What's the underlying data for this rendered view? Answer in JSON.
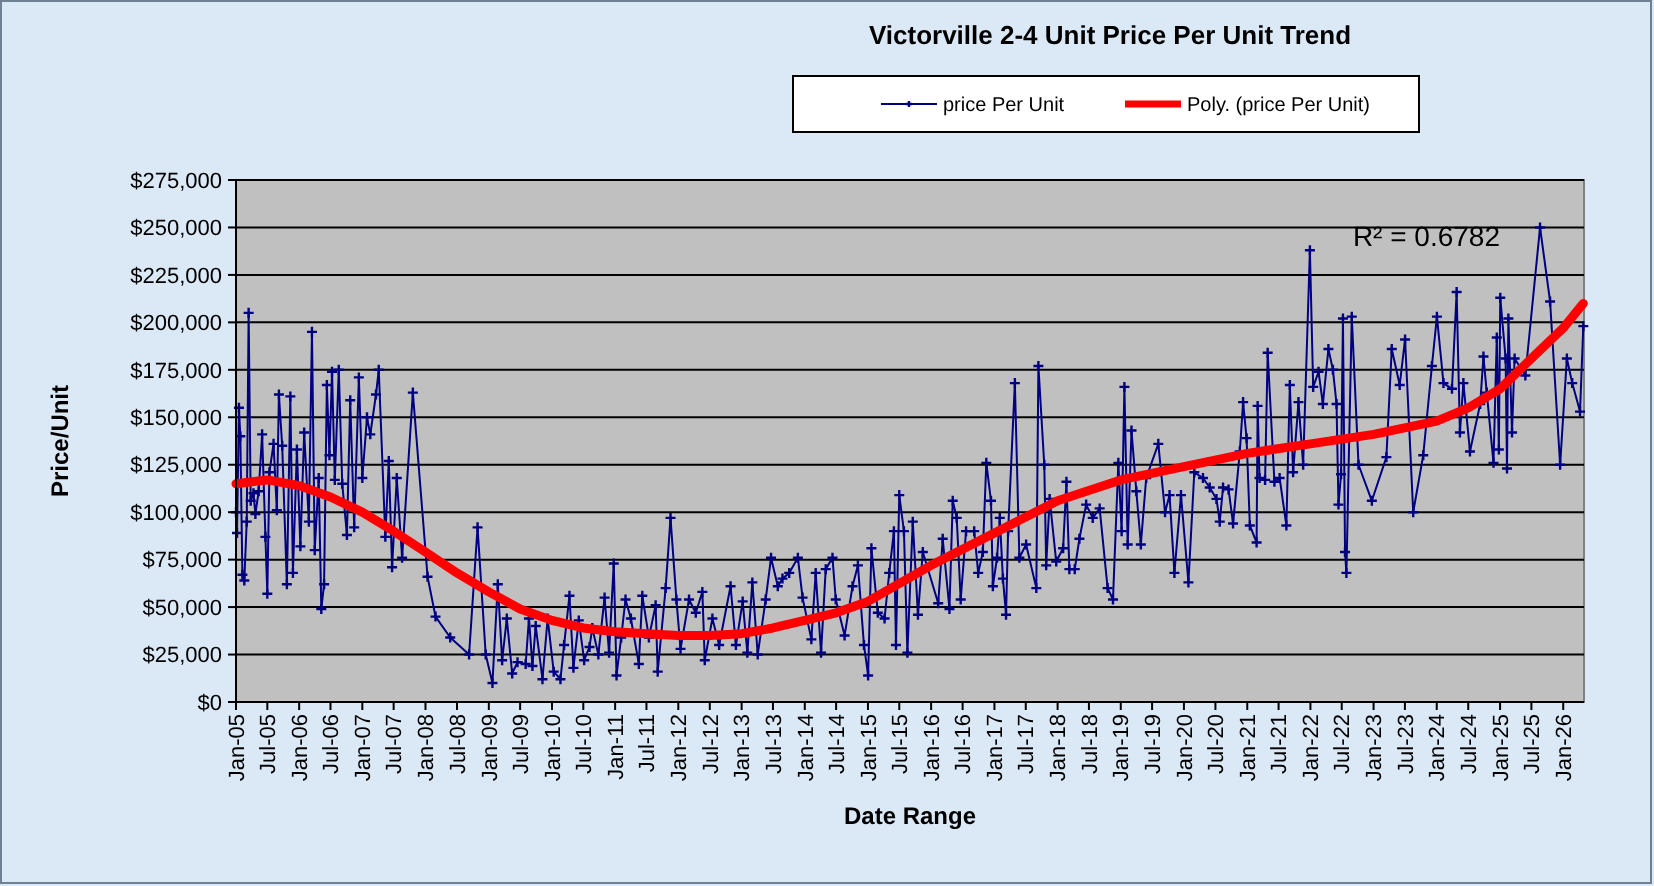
{
  "chart_data": {
    "type": "line",
    "title": "Victorville 2-4 Unit Price Per Unit Trend",
    "xlabel": "Date Range",
    "ylabel": "Price/Unit",
    "annotations": [
      "R² = 0.6782"
    ],
    "series": [
      {
        "name": "price Per Unit",
        "color": "#000080",
        "x": [
          "2005-01-01",
          "2005-01-07",
          "2005-01-18",
          "2005-01-26",
          "2005-02-07",
          "2005-02-18",
          "2005-03-04",
          "2005-03-15",
          "2005-03-27",
          "2005-04-12",
          "2005-04-23",
          "2005-05-12",
          "2005-06-01",
          "2005-06-20",
          "2005-07-01",
          "2005-07-13",
          "2005-08-06",
          "2005-08-25",
          "2005-09-06",
          "2005-09-25",
          "2005-10-22",
          "2005-11-11",
          "2005-11-26",
          "2005-12-19",
          "2006-01-08",
          "2006-01-30",
          "2006-02-26",
          "2006-03-16",
          "2006-04-01",
          "2006-04-24",
          "2006-05-09",
          "2006-05-25",
          "2006-06-10",
          "2006-06-25",
          "2006-07-10",
          "2006-07-26",
          "2006-08-18",
          "2006-09-07",
          "2006-10-04",
          "2006-10-23",
          "2006-11-15",
          "2006-12-12",
          "2007-01-01",
          "2007-01-28",
          "2007-02-16",
          "2007-03-21",
          "2007-04-06",
          "2007-05-14",
          "2007-06-03",
          "2007-06-22",
          "2007-07-19",
          "2007-08-19",
          "2007-10-20",
          "2008-01-13",
          "2008-02-28",
          "2008-05-23",
          "2008-09-09",
          "2008-10-28",
          "2008-12-14",
          "2009-01-22",
          "2009-02-22",
          "2009-03-19",
          "2009-04-15",
          "2009-05-16",
          "2009-06-16",
          "2009-08-02",
          "2009-08-21",
          "2009-09-10",
          "2009-09-29",
          "2009-11-07",
          "2009-12-07",
          "2010-01-11",
          "2010-02-19",
          "2010-03-12",
          "2010-04-12",
          "2010-05-05",
          "2010-06-05",
          "2010-07-06",
          "2010-08-06",
          "2010-08-22",
          "2010-09-26",
          "2010-11-01",
          "2010-11-27",
          "2010-12-24",
          "2011-01-09",
          "2011-02-05",
          "2011-03-02",
          "2011-04-02",
          "2011-05-18",
          "2011-06-07",
          "2011-07-15",
          "2011-08-23",
          "2011-09-04",
          "2011-10-20",
          "2011-11-17",
          "2011-12-21",
          "2012-01-14",
          "2012-03-03",
          "2012-04-11",
          "2012-05-19",
          "2012-06-02",
          "2012-07-16",
          "2012-08-24",
          "2012-10-29",
          "2012-11-29",
          "2013-01-07",
          "2013-02-03",
          "2013-03-04",
          "2013-04-04",
          "2013-05-20",
          "2013-06-20",
          "2013-07-29",
          "2013-08-25",
          "2013-10-03",
          "2013-11-22",
          "2013-12-19",
          "2014-02-08",
          "2014-03-05",
          "2014-04-05",
          "2014-05-02",
          "2014-06-10",
          "2014-06-29",
          "2014-08-19",
          "2014-10-04",
          "2014-11-04",
          "2014-12-09",
          "2015-01-02",
          "2015-01-21",
          "2015-02-27",
          "2015-04-07",
          "2015-05-04",
          "2015-05-31",
          "2015-06-12",
          "2015-07-01",
          "2015-07-28",
          "2015-08-17",
          "2015-09-17",
          "2015-10-17",
          "2015-11-14",
          "2016-02-11",
          "2016-03-08",
          "2016-04-16",
          "2016-05-05",
          "2016-05-28",
          "2016-06-20",
          "2016-07-21",
          "2016-09-06",
          "2016-09-29",
          "2016-10-26",
          "2016-11-15",
          "2016-12-12",
          "2016-12-23",
          "2017-01-16",
          "2017-02-01",
          "2017-02-19",
          "2017-03-09",
          "2017-03-21",
          "2017-04-29",
          "2017-05-25",
          "2017-07-03",
          "2017-08-31",
          "2017-09-12",
          "2017-10-16",
          "2017-10-27",
          "2017-11-16",
          "2017-12-24",
          "2018-02-02",
          "2018-02-21",
          "2018-03-10",
          "2018-04-10",
          "2018-05-07",
          "2018-06-15",
          "2018-07-23",
          "2018-09-01",
          "2018-10-17",
          "2018-11-17",
          "2018-12-18",
          "2019-01-06",
          "2019-01-22",
          "2019-02-10",
          "2019-03-04",
          "2019-04-01",
          "2019-04-27",
          "2019-05-28",
          "2019-08-06",
          "2019-09-14",
          "2019-10-10",
          "2019-11-07",
          "2019-12-15",
          "2020-01-27",
          "2020-03-01",
          "2020-04-20",
          "2020-05-29",
          "2020-07-07",
          "2020-07-26",
          "2020-08-14",
          "2020-09-15",
          "2020-10-11",
          "2020-11-19",
          "2020-12-08",
          "2020-12-28",
          "2021-01-16",
          "2021-02-24",
          "2021-03-02",
          "2021-03-13",
          "2021-04-14",
          "2021-04-29",
          "2021-06-07",
          "2021-07-07",
          "2021-08-15",
          "2021-09-04",
          "2021-09-23",
          "2021-10-24",
          "2021-11-20",
          "2021-12-29",
          "2022-01-17",
          "2022-02-17",
          "2022-03-14",
          "2022-04-15",
          "2022-05-11",
          "2022-06-01",
          "2022-06-12",
          "2022-06-27",
          "2022-07-08",
          "2022-07-20",
          "2022-07-28",
          "2022-08-28",
          "2022-10-06",
          "2022-12-22",
          "2023-03-16",
          "2023-04-16",
          "2023-06-01",
          "2023-07-02",
          "2023-08-18",
          "2023-10-15",
          "2023-12-04",
          "2024-01-02",
          "2024-02-09",
          "2024-03-29",
          "2024-04-25",
          "2024-05-14",
          "2024-06-03",
          "2024-07-11",
          "2024-09-08",
          "2024-09-27",
          "2024-10-16",
          "2024-11-24",
          "2024-12-13",
          "2024-12-25",
          "2025-01-02",
          "2025-02-02",
          "2025-02-10",
          "2025-02-18",
          "2025-03-11",
          "2025-03-26",
          "2025-05-27",
          "2025-08-20",
          "2025-10-17",
          "2025-12-14",
          "2026-01-22",
          "2026-02-22",
          "2026-04-08",
          "2026-04-27"
        ],
        "values": [
          100000,
          89000,
          155000,
          140000,
          67000,
          64000,
          95000,
          205000,
          106000,
          110000,
          99000,
          111000,
          141000,
          87000,
          57000,
          121000,
          136000,
          101000,
          162000,
          135000,
          62000,
          161000,
          68000,
          133000,
          82000,
          142000,
          95000,
          195000,
          80000,
          118000,
          49000,
          62000,
          167000,
          130000,
          174000,
          117000,
          175000,
          115000,
          88000,
          159000,
          92000,
          171000,
          118000,
          150000,
          141000,
          162000,
          175000,
          87000,
          127000,
          71000,
          118000,
          76000,
          163000,
          66000,
          45000,
          34000,
          25000,
          92000,
          25000,
          10000,
          62000,
          22000,
          44000,
          15000,
          21000,
          20000,
          44000,
          19000,
          40000,
          12000,
          44000,
          16000,
          12000,
          30000,
          56000,
          18000,
          43000,
          22000,
          29000,
          39000,
          25000,
          55000,
          26000,
          73000,
          14000,
          34000,
          54000,
          44000,
          20000,
          56000,
          34000,
          51000,
          16000,
          60000,
          97000,
          54000,
          28000,
          54000,
          47000,
          58000,
          22000,
          44000,
          30000,
          61000,
          30000,
          53000,
          26000,
          63000,
          25000,
          54000,
          76000,
          61000,
          65000,
          68000,
          76000,
          55000,
          33000,
          68000,
          26000,
          70000,
          76000,
          54000,
          35000,
          61000,
          72000,
          30000,
          14000,
          81000,
          47000,
          44000,
          68000,
          90000,
          30000,
          109000,
          90000,
          26000,
          95000,
          46000,
          79000,
          52000,
          86000,
          49000,
          106000,
          97000,
          54000,
          90000,
          90000,
          68000,
          79000,
          126000,
          106000,
          61000,
          76000,
          97000,
          65000,
          46000,
          90000,
          168000,
          76000,
          83000,
          60000,
          177000,
          125000,
          72000,
          107000,
          74000,
          81000,
          116000,
          70000,
          70000,
          86000,
          104000,
          97000,
          102000,
          60000,
          54000,
          126000,
          90000,
          166000,
          83000,
          143000,
          111000,
          83000,
          118000,
          136000,
          100000,
          109000,
          68000,
          109000,
          63000,
          121000,
          118000,
          113000,
          107000,
          95000,
          113000,
          112000,
          94000,
          132000,
          158000,
          139000,
          93000,
          84000,
          156000,
          118000,
          117000,
          184000,
          116000,
          118000,
          93000,
          167000,
          121000,
          158000,
          125000,
          238000,
          166000,
          174000,
          157000,
          186000,
          175000,
          157000,
          104000,
          120000,
          202000,
          79000,
          68000,
          203000,
          125000,
          106000,
          129000,
          186000,
          167000,
          191000,
          100000,
          130000,
          177000,
          203000,
          168000,
          165000,
          216000,
          142000,
          168000,
          132000,
          157000,
          182000,
          163000,
          126000,
          192000,
          133000,
          213000,
          181000,
          123000,
          202000,
          142000,
          181000,
          172000,
          250000,
          211000,
          125000,
          181000,
          168000,
          153000,
          198000
        ]
      },
      {
        "name": "Poly. (price Per Unit)",
        "color": "#ff0000",
        "marker": "none",
        "x": [
          "2005-01-01",
          "2005-07-01",
          "2006-01-01",
          "2006-07-01",
          "2007-01-01",
          "2007-07-01",
          "2008-01-01",
          "2008-07-01",
          "2009-01-01",
          "2009-07-01",
          "2010-01-01",
          "2010-07-01",
          "2011-01-01",
          "2011-07-01",
          "2012-01-01",
          "2012-07-01",
          "2013-01-01",
          "2013-07-01",
          "2014-01-01",
          "2014-07-01",
          "2015-01-01",
          "2016-01-01",
          "2017-01-01",
          "2018-01-01",
          "2019-01-01",
          "2020-01-01",
          "2021-01-01",
          "2022-01-01",
          "2023-01-01",
          "2024-01-01",
          "2024-07-01",
          "2025-01-01",
          "2025-07-01",
          "2026-01-01",
          "2026-04-27"
        ],
        "values": [
          115000,
          117000,
          114000,
          108000,
          100000,
          90000,
          79000,
          68000,
          58000,
          49000,
          43000,
          39000,
          37000,
          36000,
          35000,
          35000,
          36000,
          39000,
          43000,
          47000,
          53000,
          72000,
          89000,
          106000,
          117000,
          124000,
          131000,
          136000,
          141000,
          148000,
          155000,
          165000,
          181000,
          197000,
          210000
        ]
      }
    ],
    "xlim": [
      "2005-01-01",
      "2026-05-01"
    ],
    "xticks": [
      {
        "value": "2005-01-01",
        "label": "Jan-05"
      },
      {
        "value": "2005-07-01",
        "label": "Jul-05"
      },
      {
        "value": "2006-01-01",
        "label": "Jan-06"
      },
      {
        "value": "2006-07-01",
        "label": "Jul-06"
      },
      {
        "value": "2007-01-01",
        "label": "Jan-07"
      },
      {
        "value": "2007-07-01",
        "label": "Jul-07"
      },
      {
        "value": "2008-01-01",
        "label": "Jan-08"
      },
      {
        "value": "2008-07-01",
        "label": "Jul-08"
      },
      {
        "value": "2009-01-01",
        "label": "Jan-09"
      },
      {
        "value": "2009-07-01",
        "label": "Jul-09"
      },
      {
        "value": "2010-01-01",
        "label": "Jan-10"
      },
      {
        "value": "2010-07-01",
        "label": "Jul-10"
      },
      {
        "value": "2011-01-01",
        "label": "Jan-11"
      },
      {
        "value": "2011-07-01",
        "label": "Jul-11"
      },
      {
        "value": "2012-01-01",
        "label": "Jan-12"
      },
      {
        "value": "2012-07-01",
        "label": "Jul-12"
      },
      {
        "value": "2013-01-01",
        "label": "Jan-13"
      },
      {
        "value": "2013-07-01",
        "label": "Jul-13"
      },
      {
        "value": "2014-01-01",
        "label": "Jan-14"
      },
      {
        "value": "2014-07-01",
        "label": "Jul-14"
      },
      {
        "value": "2015-01-01",
        "label": "Jan-15"
      },
      {
        "value": "2015-07-01",
        "label": "Jul-15"
      },
      {
        "value": "2016-01-01",
        "label": "Jan-16"
      },
      {
        "value": "2016-07-01",
        "label": "Jul-16"
      },
      {
        "value": "2017-01-01",
        "label": "Jan-17"
      },
      {
        "value": "2017-07-01",
        "label": "Jul-17"
      },
      {
        "value": "2018-01-01",
        "label": "Jan-18"
      },
      {
        "value": "2018-07-01",
        "label": "Jul-18"
      },
      {
        "value": "2019-01-01",
        "label": "Jan-19"
      },
      {
        "value": "2019-07-01",
        "label": "Jul-19"
      },
      {
        "value": "2020-01-01",
        "label": "Jan-20"
      },
      {
        "value": "2020-07-01",
        "label": "Jul-20"
      },
      {
        "value": "2021-01-01",
        "label": "Jan-21"
      },
      {
        "value": "2021-07-01",
        "label": "Jul-21"
      },
      {
        "value": "2022-01-01",
        "label": "Jan-22"
      },
      {
        "value": "2022-07-01",
        "label": "Jul-22"
      },
      {
        "value": "2023-01-01",
        "label": "Jan-23"
      },
      {
        "value": "2023-07-01",
        "label": "Jul-23"
      },
      {
        "value": "2024-01-01",
        "label": "Jan-24"
      },
      {
        "value": "2024-07-01",
        "label": "Jul-24"
      },
      {
        "value": "2025-01-01",
        "label": "Jan-25"
      },
      {
        "value": "2025-07-01",
        "label": "Jul-25"
      },
      {
        "value": "2026-01-01",
        "label": "Jan-26"
      }
    ],
    "ylim": [
      0,
      275000
    ],
    "yticks": [
      {
        "value": 0,
        "label": "$0"
      },
      {
        "value": 25000,
        "label": "$25,000"
      },
      {
        "value": 50000,
        "label": "$50,000"
      },
      {
        "value": 75000,
        "label": "$75,000"
      },
      {
        "value": 100000,
        "label": "$100,000"
      },
      {
        "value": 125000,
        "label": "$125,000"
      },
      {
        "value": 150000,
        "label": "$150,000"
      },
      {
        "value": 175000,
        "label": "$175,000"
      },
      {
        "value": 200000,
        "label": "$200,000"
      },
      {
        "value": 225000,
        "label": "$225,000"
      },
      {
        "value": 250000,
        "label": "$250,000"
      },
      {
        "value": 275000,
        "label": "$275,000"
      }
    ],
    "grid": "y",
    "legend": "top",
    "marker": "cross",
    "line_style": "solid"
  }
}
